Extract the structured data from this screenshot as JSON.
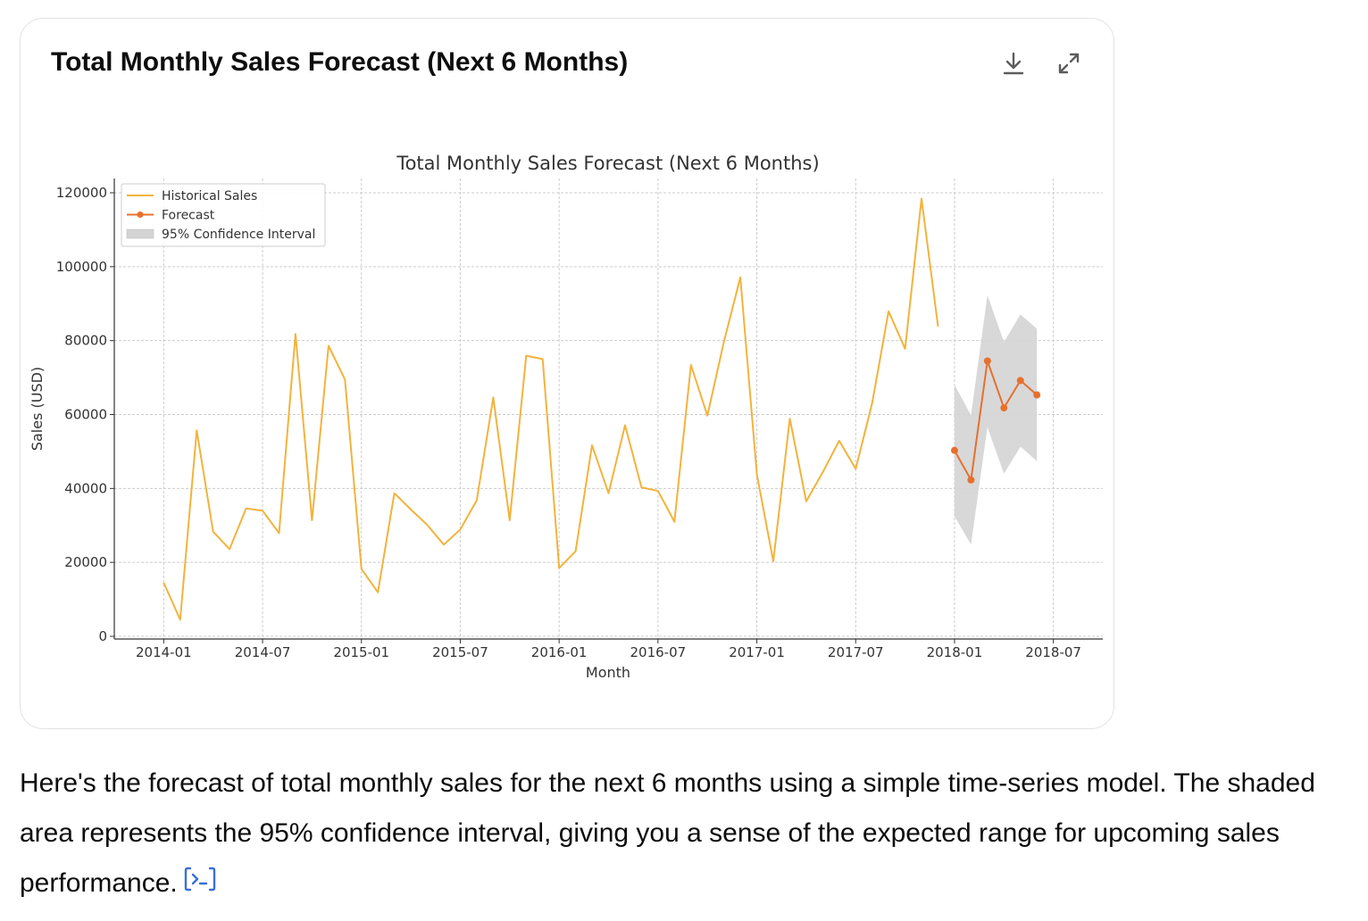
{
  "card": {
    "title": "Total Monthly Sales Forecast (Next 6 Months)",
    "actions": [
      {
        "name": "download-button",
        "icon": "download-icon"
      },
      {
        "name": "expand-button",
        "icon": "expand-icon"
      }
    ]
  },
  "caption": {
    "text": "Here's the forecast of total monthly sales for the next 6 months using a simple time-series model. The shaded area represents the 95% confidence interval, giving you a sense of the expected range for upcoming sales performance.",
    "code_icon": "code-view-icon"
  },
  "colors": {
    "historical": "#F2B33D",
    "forecast": "#E6702E",
    "ci_fill": "#d4d4d4",
    "grid": "#cccccc",
    "link": "#3a6fd8"
  },
  "chart_data": {
    "type": "line",
    "title": "Total Monthly Sales Forecast (Next 6 Months)",
    "xlabel": "Month",
    "ylabel": "Sales (USD)",
    "ylim": [
      0,
      120000
    ],
    "yticks": [
      0,
      20000,
      40000,
      60000,
      80000,
      100000,
      120000
    ],
    "xticks": [
      "2014-01",
      "2014-07",
      "2015-01",
      "2015-07",
      "2016-01",
      "2016-07",
      "2017-01",
      "2017-07",
      "2018-01",
      "2018-07"
    ],
    "grid": true,
    "legend_position": "top-left",
    "series": [
      {
        "name": "Historical Sales",
        "x": [
          "2014-01",
          "2014-02",
          "2014-03",
          "2014-04",
          "2014-05",
          "2014-06",
          "2014-07",
          "2014-08",
          "2014-09",
          "2014-10",
          "2014-11",
          "2014-12",
          "2015-01",
          "2015-02",
          "2015-03",
          "2015-04",
          "2015-05",
          "2015-06",
          "2015-07",
          "2015-08",
          "2015-09",
          "2015-10",
          "2015-11",
          "2015-12",
          "2016-01",
          "2016-02",
          "2016-03",
          "2016-04",
          "2016-05",
          "2016-06",
          "2016-07",
          "2016-08",
          "2016-09",
          "2016-10",
          "2016-11",
          "2016-12",
          "2017-01",
          "2017-02",
          "2017-03",
          "2017-04",
          "2017-05",
          "2017-06",
          "2017-07",
          "2017-08",
          "2017-09",
          "2017-10",
          "2017-11",
          "2017-12"
        ],
        "values": [
          14500,
          4500,
          55700,
          28300,
          23600,
          34600,
          34000,
          27900,
          81800,
          31400,
          78600,
          69500,
          18200,
          11900,
          38700,
          34300,
          30100,
          24800,
          28900,
          36800,
          64600,
          31400,
          75900,
          75000,
          18500,
          23000,
          51700,
          38700,
          57100,
          40300,
          39300,
          31000,
          73400,
          59700,
          79600,
          97100,
          43800,
          20300,
          58900,
          36500,
          44400,
          52900,
          45300,
          63100,
          87900,
          77800,
          118400,
          83800
        ]
      },
      {
        "name": "Forecast",
        "x": [
          "2018-01",
          "2018-02",
          "2018-03",
          "2018-04",
          "2018-05",
          "2018-06"
        ],
        "values": [
          50300,
          42300,
          74500,
          61800,
          69200,
          65300
        ]
      }
    ],
    "confidence_interval": {
      "name": "95% Confidence Interval",
      "x": [
        "2018-01",
        "2018-02",
        "2018-03",
        "2018-04",
        "2018-05",
        "2018-06"
      ],
      "lower": [
        32500,
        24800,
        56600,
        44000,
        51300,
        47400
      ],
      "upper": [
        68100,
        59800,
        92300,
        79600,
        87100,
        83200
      ]
    }
  }
}
